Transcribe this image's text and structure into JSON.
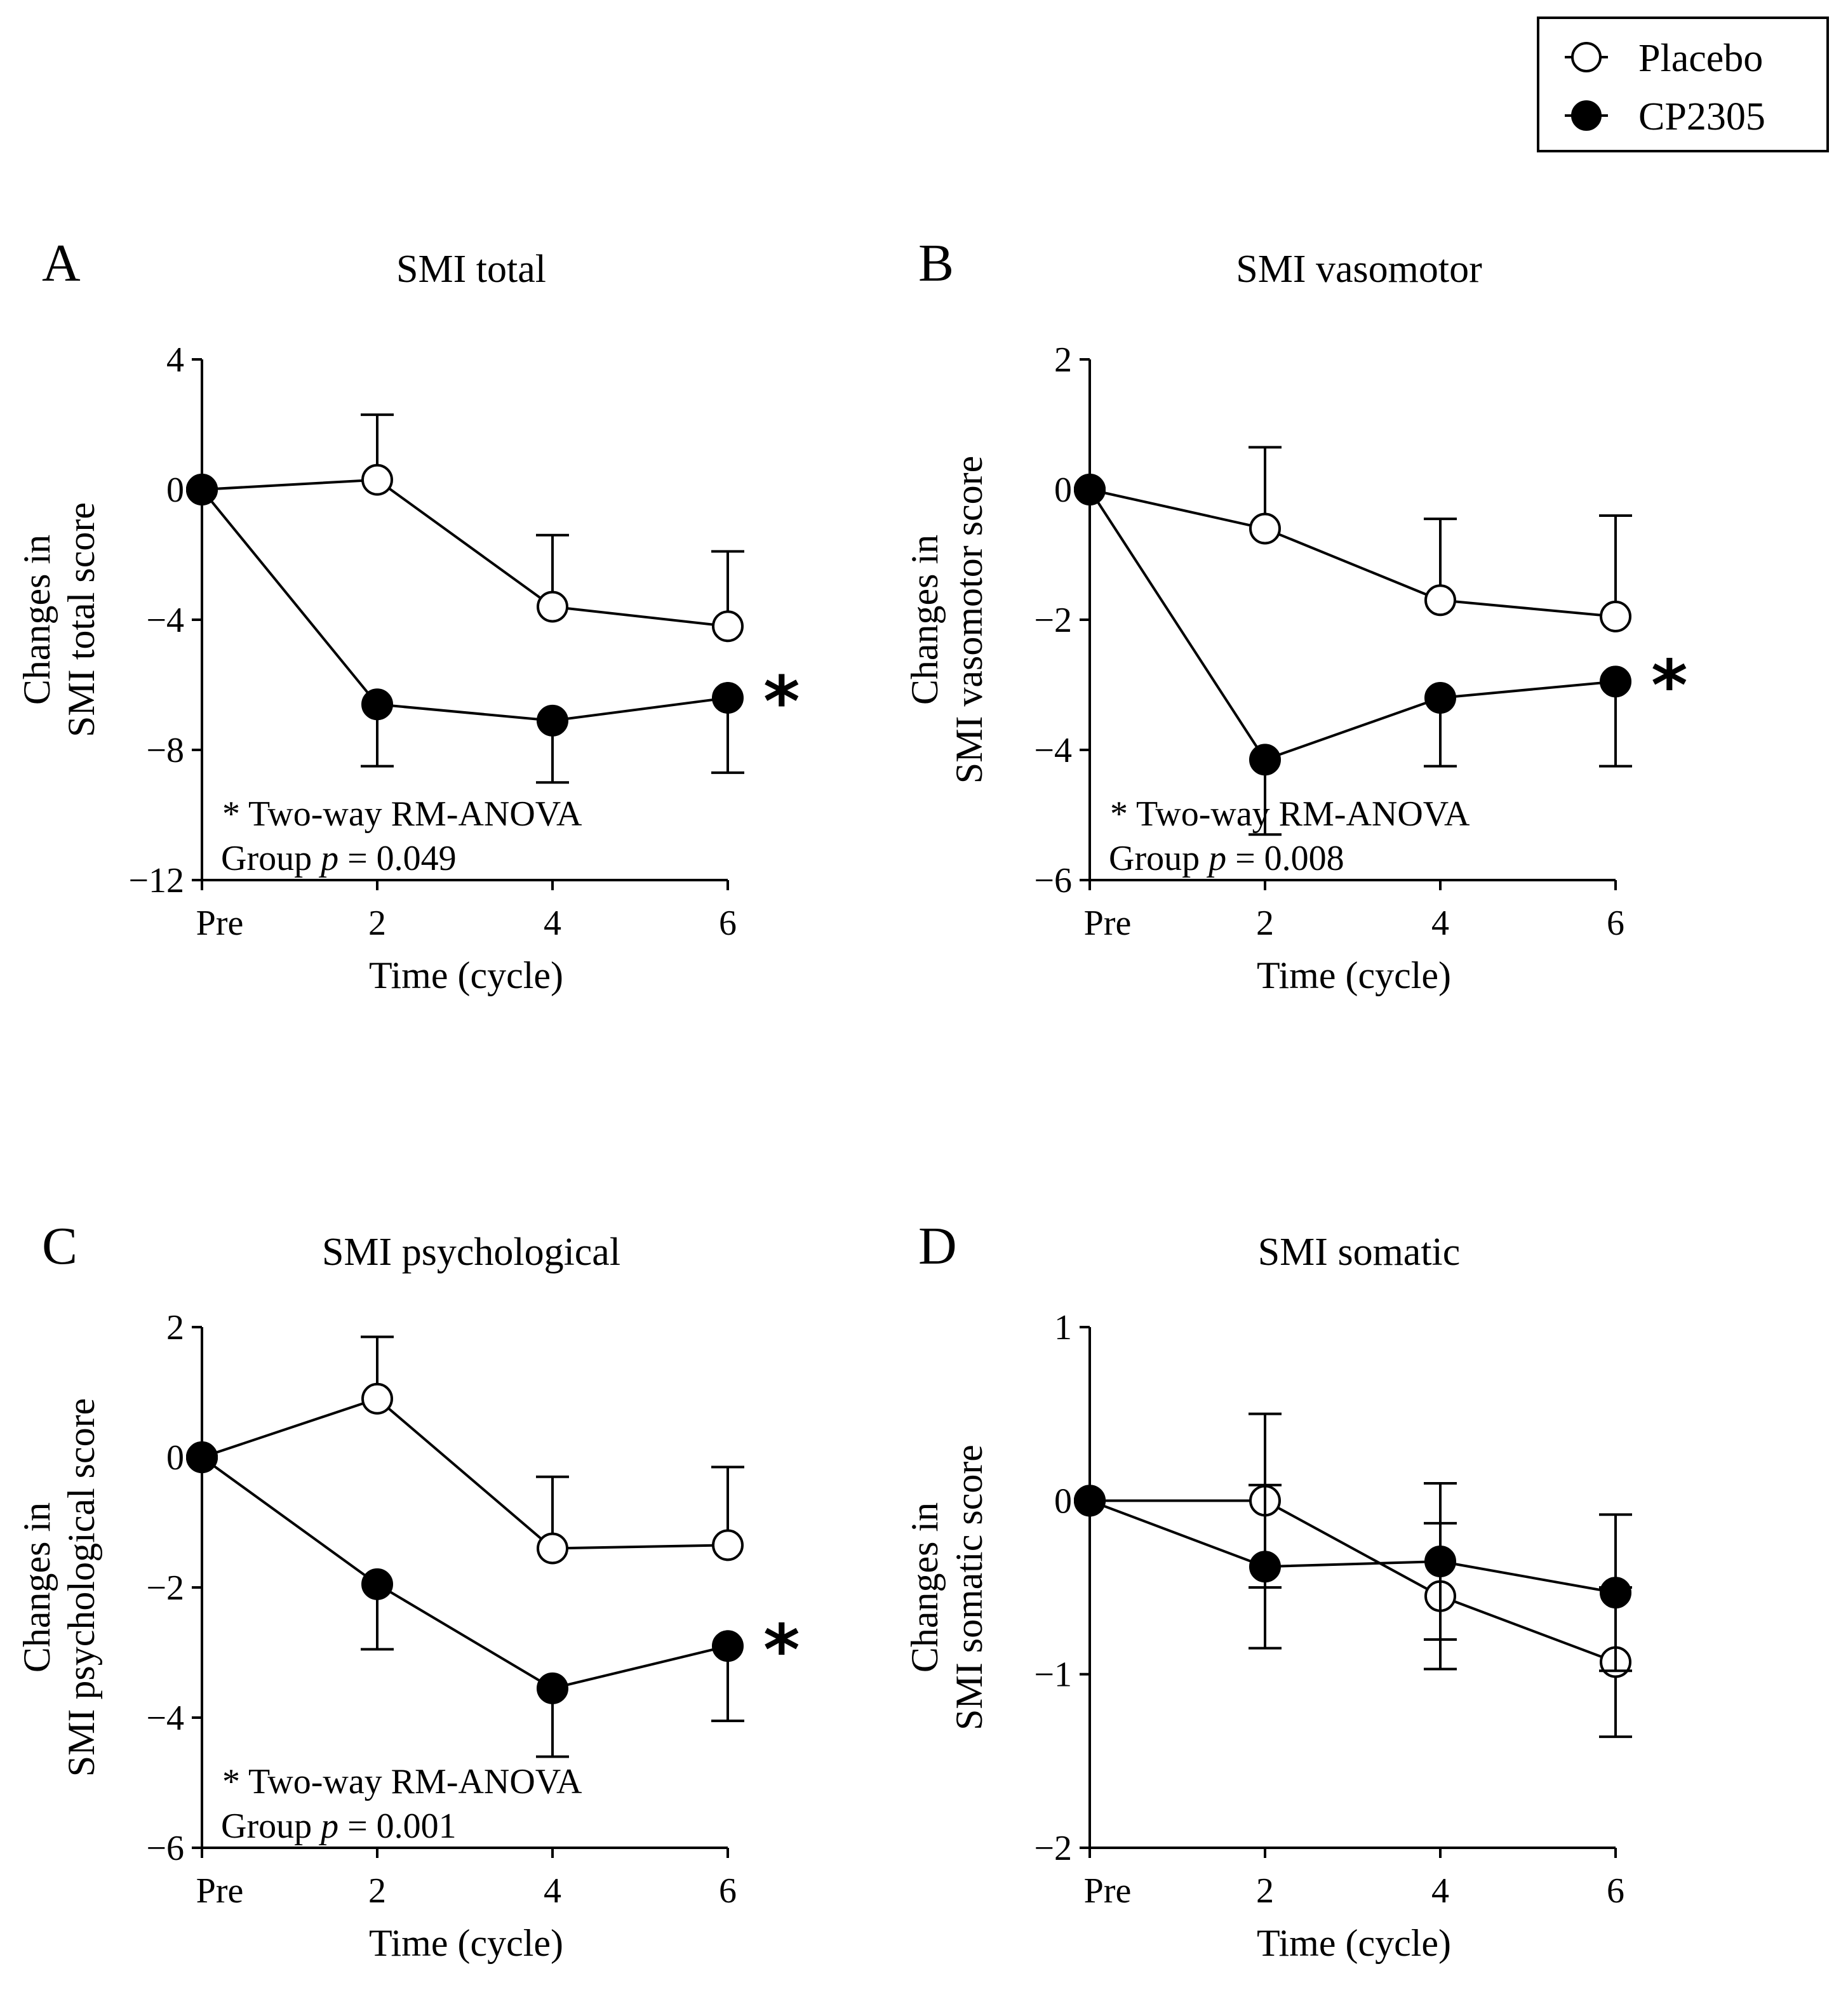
{
  "legend": {
    "items": [
      {
        "name": "Placebo",
        "marker": "open-circle"
      },
      {
        "name": "CP2305",
        "marker": "filled-circle"
      }
    ]
  },
  "colors": {
    "ink": "#000000",
    "background": "#ffffff"
  },
  "chart_data": [
    {
      "panel": "A",
      "type": "line",
      "title": "SMI total",
      "xlabel": "Time  (cycle)",
      "ylabel": [
        "Changes  in",
        "SMI total  score"
      ],
      "categories": [
        "Pre",
        "2",
        "4",
        "6"
      ],
      "ylim": [
        -12,
        4
      ],
      "yticks": [
        4,
        0,
        -4,
        -8,
        -12
      ],
      "ytick_labels": [
        "4",
        "0",
        "−4",
        "−8",
        "−12"
      ],
      "series": [
        {
          "name": "Placebo",
          "values": [
            0,
            0.3,
            -3.6,
            -4.2
          ],
          "errors": [
            0,
            2.0,
            2.2,
            2.3
          ],
          "error_dir": "up"
        },
        {
          "name": "CP2305",
          "values": [
            0,
            -6.6,
            -7.1,
            -6.4
          ],
          "errors": [
            0,
            1.9,
            1.9,
            2.3
          ],
          "error_dir": "down"
        }
      ],
      "significance": "*",
      "annotation": {
        "line1": "* Two-way RM-ANOVA",
        "group_prefix": "Group ",
        "p_symbol": "p",
        "p_value": " = 0.049"
      }
    },
    {
      "panel": "B",
      "type": "line",
      "title": "SMI vasomotor",
      "xlabel": "Time  (cycle)",
      "ylabel": [
        "Changes  in",
        "SMI vasomotor  score"
      ],
      "categories": [
        "Pre",
        "2",
        "4",
        "6"
      ],
      "ylim": [
        -6,
        2
      ],
      "yticks": [
        2,
        0,
        -2,
        -4,
        -6
      ],
      "ytick_labels": [
        "2",
        "0",
        "−2",
        "−4",
        "−6"
      ],
      "series": [
        {
          "name": "Placebo",
          "values": [
            0,
            -0.6,
            -1.7,
            -1.95
          ],
          "errors": [
            0,
            1.25,
            1.25,
            1.55
          ],
          "error_dir": "up"
        },
        {
          "name": "CP2305",
          "values": [
            0,
            -4.15,
            -3.2,
            -2.95
          ],
          "errors": [
            0,
            1.15,
            1.05,
            1.3
          ],
          "error_dir": "down"
        }
      ],
      "significance": "*",
      "annotation": {
        "line1": "* Two-way RM-ANOVA",
        "group_prefix": "Group ",
        "p_symbol": "p",
        "p_value": " = 0.008"
      }
    },
    {
      "panel": "C",
      "type": "line",
      "title": "SMI psychological",
      "xlabel": "Time  (cycle)",
      "ylabel": [
        "Changes  in",
        "SMI psychological  score"
      ],
      "categories": [
        "Pre",
        "2",
        "4",
        "6"
      ],
      "ylim": [
        -6,
        2
      ],
      "yticks": [
        2,
        0,
        -2,
        -4,
        -6
      ],
      "ytick_labels": [
        "2",
        "0",
        "−2",
        "−4",
        "−6"
      ],
      "series": [
        {
          "name": "Placebo",
          "values": [
            0,
            0.9,
            -1.4,
            -1.35
          ],
          "errors": [
            0,
            0.95,
            1.1,
            1.2
          ],
          "error_dir": "up"
        },
        {
          "name": "CP2305",
          "values": [
            0,
            -1.95,
            -3.55,
            -2.9
          ],
          "errors": [
            0,
            1.0,
            1.05,
            1.15
          ],
          "error_dir": "down"
        }
      ],
      "significance": "*",
      "annotation": {
        "line1": "* Two-way RM-ANOVA",
        "group_prefix": "Group ",
        "p_symbol": "p",
        "p_value": " = 0.001"
      }
    },
    {
      "panel": "D",
      "type": "line",
      "title": "SMI somatic",
      "xlabel": "Time  (cycle)",
      "ylabel": [
        "Changes  in",
        "SMI somatic  score"
      ],
      "categories": [
        "Pre",
        "2",
        "4",
        "6"
      ],
      "ylim": [
        -2,
        1
      ],
      "yticks": [
        1,
        0,
        -1,
        -2
      ],
      "ytick_labels": [
        "1",
        "0",
        "−1",
        "−2"
      ],
      "series": [
        {
          "name": "Placebo",
          "values": [
            0,
            0,
            -0.55,
            -0.93
          ],
          "errors": [
            0,
            0.5,
            0.42,
            0.43
          ],
          "error_dir": "both"
        },
        {
          "name": "CP2305",
          "values": [
            0,
            -0.38,
            -0.35,
            -0.53
          ],
          "errors": [
            0,
            0.47,
            0.45,
            0.45
          ],
          "error_dir": "both"
        }
      ],
      "significance": "",
      "annotation": null
    }
  ]
}
